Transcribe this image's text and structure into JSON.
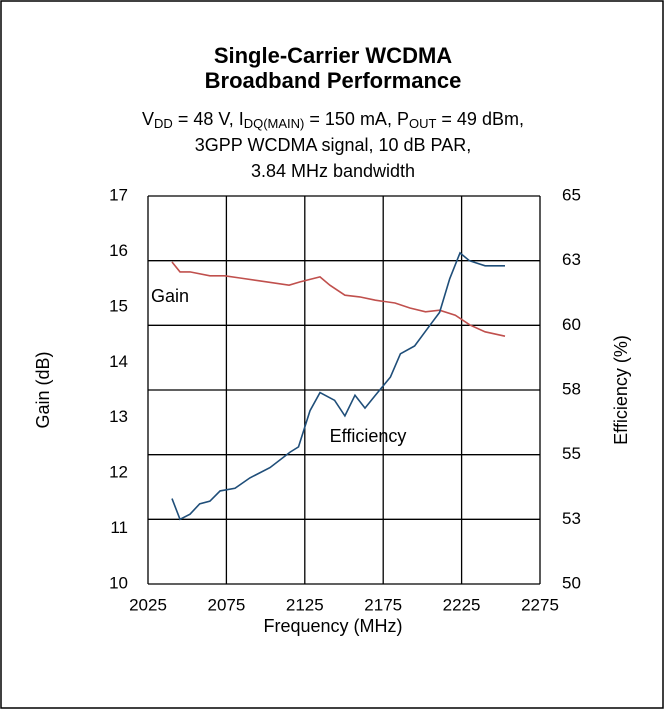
{
  "chart_data": {
    "type": "line",
    "title": [
      "Single-Carrier WCDMA",
      "Broadband Performance"
    ],
    "subtitle": [
      [
        "V",
        "DD",
        " = 48 V, I",
        "DQ(MAIN)",
        " = 150 mA, P",
        "OUT",
        " = 49 dBm,"
      ],
      [
        "3GPP WCDMA signal, 10 dB PAR,"
      ],
      [
        "3.84 MHz bandwidth"
      ]
    ],
    "xlabel": "Frequency (MHz)",
    "ylabel": "Gain (dB)",
    "y2label": "Efficiency (%)",
    "xlim": [
      2025,
      2275
    ],
    "xticks": [
      2025,
      2075,
      2125,
      2175,
      2225,
      2275
    ],
    "ylim": [
      10,
      17
    ],
    "yticks": [
      10,
      11,
      12,
      13,
      14,
      15,
      16,
      17
    ],
    "y2lim": [
      50,
      65
    ],
    "y2ticks": [
      50,
      {
        "value": 52.5,
        "label": "53"
      },
      55,
      {
        "value": 57.5,
        "label": "58"
      },
      60,
      {
        "value": 62.5,
        "label": "63"
      },
      65
    ],
    "grid": true,
    "series": [
      {
        "name": "Gain",
        "color": "#c0504d",
        "x": [
          2040.3,
          2045.4,
          2051.8,
          2064.5,
          2074,
          2083.7,
          2096,
          2115,
          2122,
          2134.7,
          2141,
          2150.6,
          2160,
          2170,
          2182.5,
          2192,
          2202,
          2211,
          2221,
          2230.4,
          2240,
          2252.7
        ],
        "values": [
          15.81,
          15.63,
          15.63,
          15.56,
          15.56,
          15.52,
          15.47,
          15.39,
          15.45,
          15.54,
          15.39,
          15.21,
          15.18,
          15.12,
          15.07,
          14.98,
          14.91,
          14.94,
          14.85,
          14.67,
          14.55,
          14.47
        ]
      },
      {
        "name": "Efficiency",
        "color": "#1f4e79",
        "axis": "y2",
        "x": [
          2040.3,
          2045.4,
          2051.8,
          2058,
          2064.5,
          2071,
          2080.5,
          2090,
          2102.8,
          2115.6,
          2121,
          2128.3,
          2134.7,
          2144,
          2150.6,
          2157,
          2163.4,
          2170,
          2179.6,
          2186,
          2195,
          2204.8,
          2211,
          2217.4,
          2224,
          2230,
          2240,
          2252.7
        ],
        "values": [
          53.3,
          52.5,
          52.7,
          53.1,
          53.2,
          53.6,
          53.7,
          54.1,
          54.5,
          55.1,
          55.3,
          56.7,
          57.4,
          57.1,
          56.5,
          57.3,
          56.8,
          57.3,
          58.0,
          58.9,
          59.2,
          60.0,
          60.5,
          61.8,
          62.8,
          62.5,
          62.3,
          62.3
        ]
      }
    ]
  }
}
